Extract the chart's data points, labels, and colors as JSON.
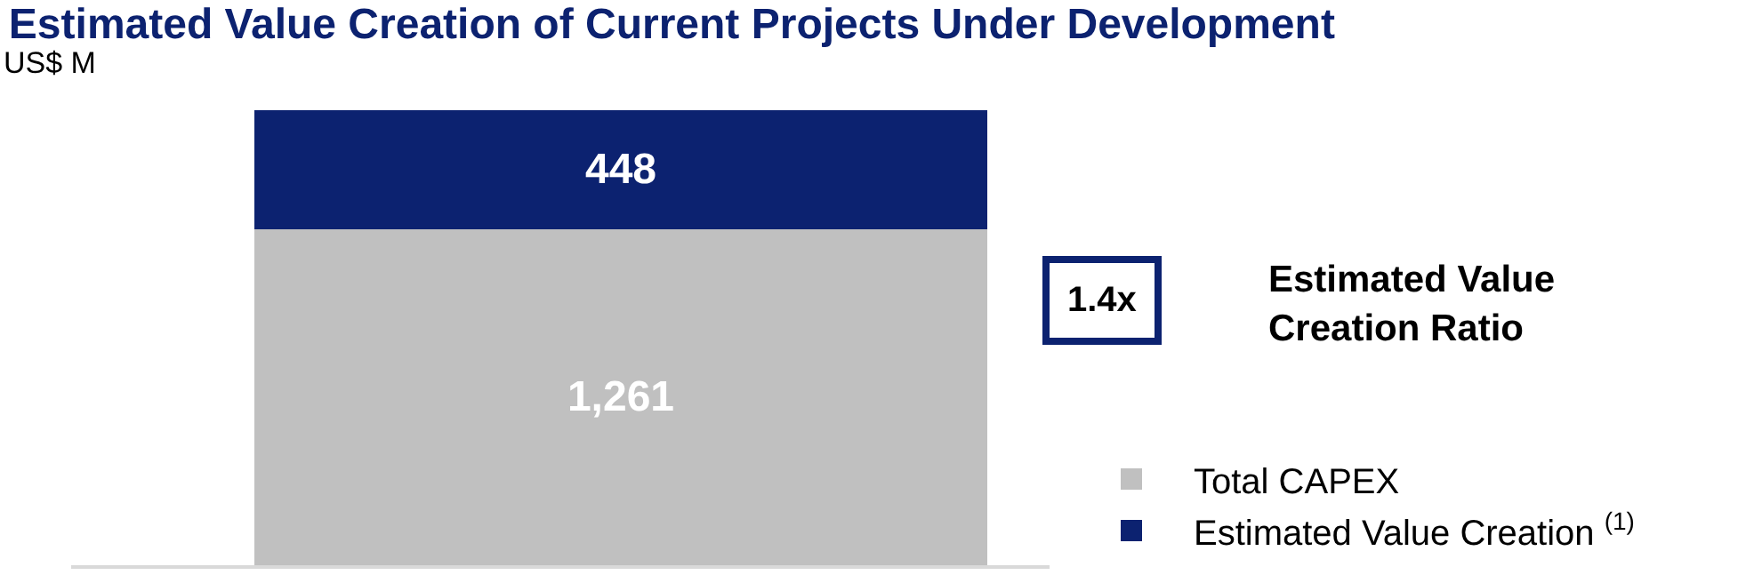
{
  "chart_data": {
    "type": "bar",
    "title": "Estimated Value Creation of Current Projects Under Development",
    "subtitle": "US$ M",
    "categories": [
      null
    ],
    "stacked": true,
    "legend": "bottom right",
    "tick_labels": false,
    "series": [
      {
        "name": "Total CAPEX",
        "color": "#c0c0c0",
        "values": [
          1261
        ],
        "value_labels": [
          "1,261"
        ]
      },
      {
        "name": "Estimated Value Creation $^{(1)}$",
        "color": "#0c2270",
        "values": [
          448
        ],
        "value_labels": [
          "448"
        ]
      }
    ],
    "annotations": [
      "1.4x",
      "Estimated Value\nCreation Ratio"
    ]
  }
}
